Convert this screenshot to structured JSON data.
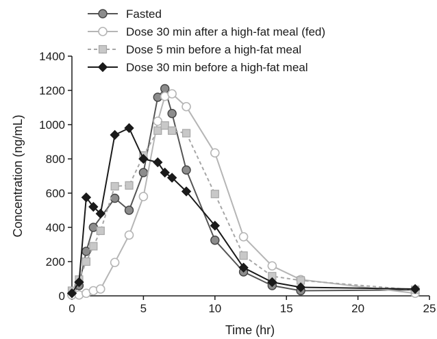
{
  "chart_data": {
    "type": "line",
    "title": "",
    "xlabel": "Time (hr)",
    "ylabel": "Concentration (ng/mL)",
    "xlim": [
      0,
      25
    ],
    "ylim": [
      0,
      1400
    ],
    "xticks": [
      0,
      5,
      10,
      15,
      20,
      25
    ],
    "yticks": [
      0,
      200,
      400,
      600,
      800,
      1000,
      1200,
      1400
    ],
    "grid": false,
    "legend_position": "top-left",
    "series": [
      {
        "name": "Fasted",
        "color": "#555555",
        "marker": "circle-filled",
        "marker_fill": "#8c8c8c",
        "line_style": "solid",
        "x": [
          0,
          0.5,
          1,
          1.5,
          3,
          4,
          5,
          6,
          6.5,
          7,
          8,
          10,
          12,
          14,
          16,
          24
        ],
        "y": [
          5,
          60,
          260,
          400,
          570,
          500,
          720,
          1160,
          1210,
          1065,
          735,
          325,
          140,
          60,
          30,
          35
        ]
      },
      {
        "name": "Dose 30 min after a high-fat meal (fed)",
        "color": "#b5b5b5",
        "marker": "circle-open",
        "marker_fill": "#ffffff",
        "line_style": "solid",
        "x": [
          0,
          0.5,
          1,
          1.5,
          2,
          3,
          4,
          5,
          6,
          6.5,
          7,
          8,
          10,
          12,
          14,
          16,
          24
        ],
        "y": [
          5,
          5,
          15,
          30,
          40,
          195,
          355,
          580,
          1020,
          1165,
          1180,
          1105,
          835,
          345,
          175,
          95,
          15
        ]
      },
      {
        "name": "Dose 5 min before a high-fat meal",
        "color": "#a6a6a6",
        "marker": "square",
        "marker_fill": "#c8c8c8",
        "line_style": "dashed",
        "x": [
          0,
          0.5,
          1,
          1.5,
          2,
          3,
          4,
          5,
          6,
          6.5,
          7,
          8,
          10,
          12,
          14,
          16,
          24
        ],
        "y": [
          30,
          95,
          200,
          290,
          380,
          640,
          645,
          820,
          965,
          995,
          965,
          950,
          595,
          235,
          115,
          90,
          35
        ]
      },
      {
        "name": "Dose 30 min before a high-fat meal",
        "color": "#1a1a1a",
        "marker": "diamond",
        "marker_fill": "#1a1a1a",
        "line_style": "solid",
        "x": [
          0,
          0.5,
          1,
          1.5,
          2,
          3,
          4,
          5,
          6,
          6.5,
          7,
          8,
          10,
          12,
          14,
          16,
          24
        ],
        "y": [
          15,
          80,
          575,
          520,
          480,
          940,
          980,
          800,
          780,
          720,
          690,
          610,
          410,
          165,
          80,
          50,
          40
        ]
      }
    ]
  }
}
